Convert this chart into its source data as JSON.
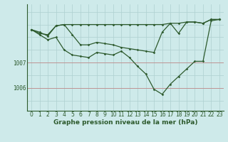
{
  "xlabel": "Graphe pression niveau de la mer (hPa)",
  "background_color": "#ceeaea",
  "grid_color": "#aed0d0",
  "line_color": "#2d5a2d",
  "red_line_color": "#c08888",
  "hours": [
    0,
    1,
    2,
    3,
    4,
    5,
    6,
    7,
    8,
    9,
    10,
    11,
    12,
    13,
    14,
    15,
    16,
    17,
    18,
    19,
    20,
    21,
    22,
    23
  ],
  "line1": [
    1008.3,
    1008.15,
    1008.1,
    1008.45,
    1008.5,
    1008.5,
    1008.5,
    1008.5,
    1008.5,
    1008.5,
    1008.5,
    1008.5,
    1008.5,
    1008.5,
    1008.5,
    1008.5,
    1008.5,
    1008.55,
    1008.55,
    1008.6,
    1008.6,
    1008.55,
    1008.7,
    1008.7
  ],
  "line2": [
    1008.3,
    1008.2,
    1008.05,
    1008.45,
    1008.5,
    1008.1,
    1007.7,
    1007.7,
    1007.8,
    1007.75,
    1007.7,
    1007.6,
    1007.55,
    1007.5,
    1007.45,
    1007.4,
    1008.2,
    1008.55,
    1008.15,
    1008.6,
    1008.6,
    1008.55,
    1008.7,
    1008.7
  ],
  "line3": [
    1008.3,
    1008.1,
    1007.9,
    1008.0,
    1007.5,
    1007.3,
    1007.25,
    1007.2,
    1007.4,
    1007.35,
    1007.3,
    1007.45,
    1007.2,
    1006.85,
    1006.55,
    1005.95,
    1005.75,
    1006.15,
    1006.45,
    1006.75,
    1007.05,
    1007.05,
    1008.65,
    1008.7
  ],
  "ylim": [
    1005.1,
    1009.3
  ],
  "yticks": [
    1006.0,
    1007.0
  ],
  "xtick_labels": [
    "0",
    "1",
    "2",
    "3",
    "4",
    "5",
    "6",
    "7",
    "8",
    "9",
    "10",
    "11",
    "12",
    "13",
    "14",
    "15",
    "16",
    "17",
    "18",
    "19",
    "20",
    "21",
    "22",
    "23"
  ],
  "tick_fontsize": 5.5,
  "xlabel_fontsize": 6.5,
  "hgrid_positions": [
    1005.5,
    1006.0,
    1006.5,
    1007.0,
    1007.5,
    1008.0,
    1008.5,
    1009.0
  ]
}
